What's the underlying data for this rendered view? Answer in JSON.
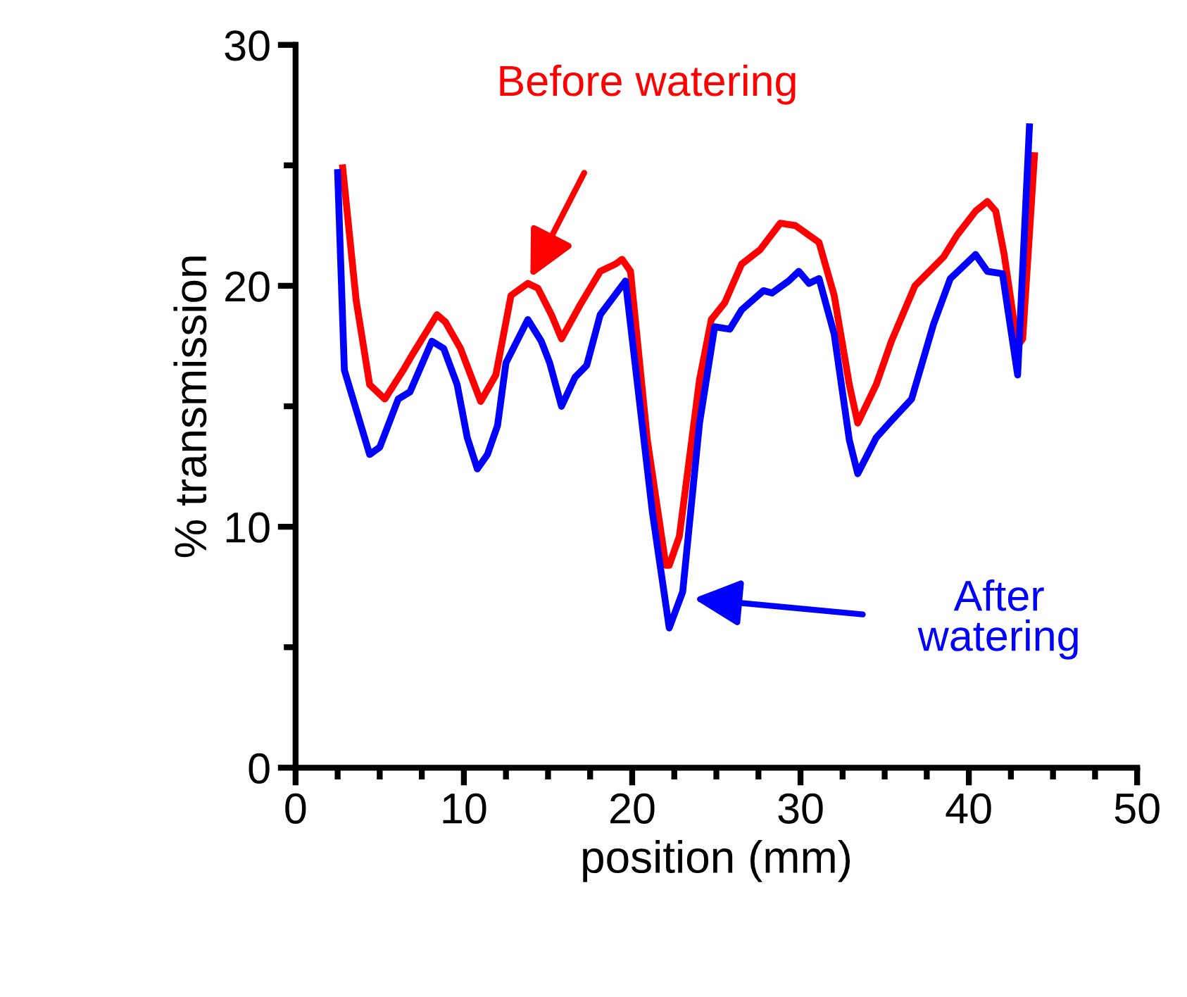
{
  "chart_data": {
    "type": "line",
    "xlabel": "position (mm)",
    "ylabel": "% transmission",
    "xlim": [
      0,
      50
    ],
    "ylim": [
      0,
      30
    ],
    "xticks": [
      0,
      {
        "value": 2.5,
        "label": null
      },
      {
        "value": 5,
        "label": null
      },
      {
        "value": 7.5,
        "label": null
      },
      10,
      {
        "value": 12.5,
        "label": null
      },
      {
        "value": 15,
        "label": null
      },
      {
        "value": 17.5,
        "label": null
      },
      20,
      {
        "value": 22.5,
        "label": null
      },
      {
        "value": 25,
        "label": null
      },
      {
        "value": 27.5,
        "label": null
      },
      30,
      {
        "value": 32.5,
        "label": null
      },
      {
        "value": 35,
        "label": null
      },
      {
        "value": 37.5,
        "label": null
      },
      40,
      {
        "value": 42.5,
        "label": null
      },
      {
        "value": 45,
        "label": null
      },
      {
        "value": 47.5,
        "label": null
      },
      50
    ],
    "yticks": [
      0,
      {
        "value": 5,
        "label": null
      },
      10,
      {
        "value": 15,
        "label": null
      },
      20,
      {
        "value": 25,
        "label": null
      },
      30
    ],
    "grid": false,
    "marker": "none",
    "line_style": "solid",
    "series": [
      {
        "color": "#ff0000",
        "x": [
          2.8,
          3.6,
          4.4,
          5.3,
          6.4,
          6.9,
          8.4,
          8.9,
          9.8,
          11.0,
          11.9,
          12.8,
          13.8,
          14.4,
          15.2,
          15.8,
          16.9,
          18.1,
          19.0,
          19.4,
          19.9,
          20.9,
          22.0,
          22.2,
          22.8,
          24.0,
          24.7,
          25.5,
          26.5,
          27.6,
          28.8,
          29.7,
          31.1,
          32.0,
          32.9,
          33.4,
          34.5,
          35.4,
          36.8,
          38.5,
          39.3,
          40.4,
          41.1,
          41.6,
          42.1,
          42.9,
          43.2,
          43.9
        ],
        "values": [
          24.9,
          19.4,
          15.9,
          15.3,
          16.5,
          17.1,
          18.8,
          18.5,
          17.4,
          15.2,
          16.3,
          19.6,
          20.1,
          19.9,
          18.8,
          17.8,
          19.2,
          20.6,
          20.9,
          21.1,
          20.6,
          13.6,
          8.4,
          8.4,
          9.6,
          16.1,
          18.6,
          19.3,
          20.9,
          21.5,
          22.6,
          22.5,
          21.8,
          19.6,
          15.9,
          14.3,
          15.9,
          17.7,
          20.0,
          21.2,
          22.1,
          23.1,
          23.5,
          23.1,
          21.3,
          17.5,
          17.8,
          25.4
        ]
      },
      {
        "color": "#0000ff",
        "x": [
          2.5,
          2.9,
          3.5,
          4.4,
          5.0,
          6.1,
          6.8,
          8.1,
          8.8,
          9.6,
          10.2,
          10.8,
          11.4,
          12.0,
          12.5,
          13.8,
          14.6,
          15.1,
          15.8,
          16.6,
          17.3,
          18.1,
          19.6,
          21.2,
          22.2,
          23.0,
          24.0,
          24.9,
          25.8,
          26.5,
          27.8,
          28.3,
          29.3,
          29.9,
          30.5,
          31.1,
          32.0,
          32.9,
          33.4,
          34.5,
          35.4,
          36.6,
          37.9,
          38.9,
          40.4,
          41.1,
          42.0,
          42.9,
          43.6
        ],
        "values": [
          24.7,
          16.5,
          15.1,
          13.0,
          13.3,
          15.3,
          15.6,
          17.7,
          17.4,
          15.9,
          13.7,
          12.4,
          13.0,
          14.2,
          16.8,
          18.6,
          17.7,
          16.8,
          15.0,
          16.2,
          16.7,
          18.8,
          20.2,
          10.6,
          5.8,
          7.3,
          14.3,
          18.3,
          18.2,
          19.0,
          19.8,
          19.7,
          20.2,
          20.6,
          20.1,
          20.3,
          18.0,
          13.6,
          12.2,
          13.7,
          14.4,
          15.3,
          18.4,
          20.3,
          21.3,
          20.6,
          20.5,
          16.3,
          26.6
        ]
      }
    ],
    "annotations": [
      "Before watering",
      "After\nwatering"
    ]
  }
}
